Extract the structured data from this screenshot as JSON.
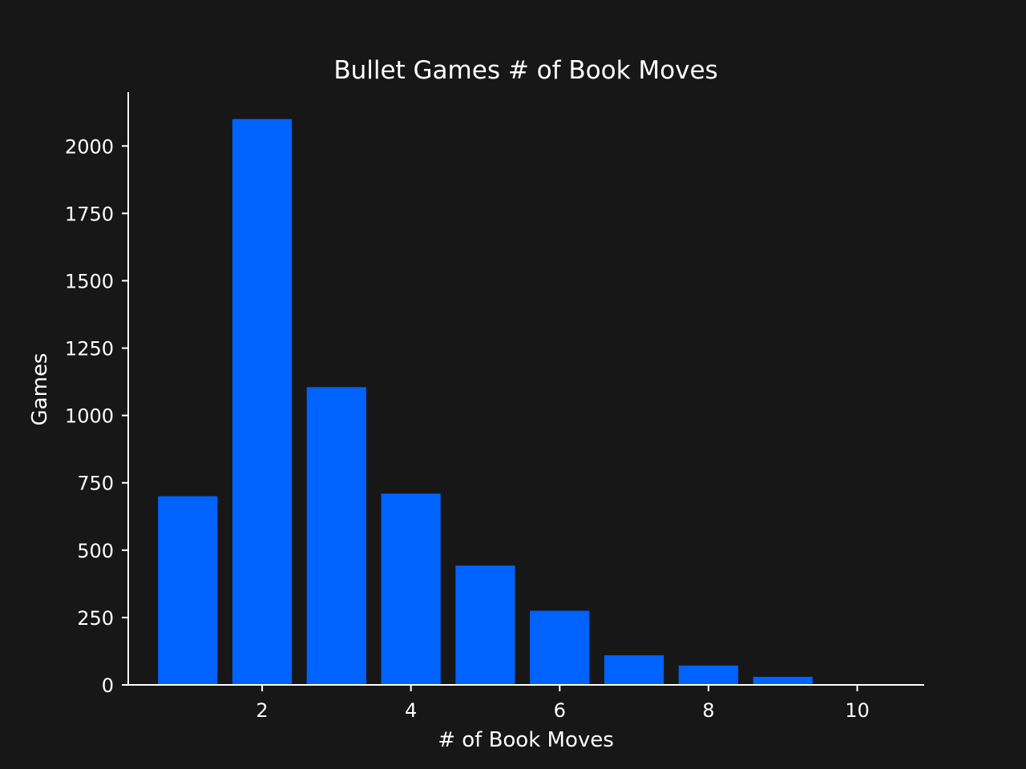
{
  "chart_data": {
    "type": "bar",
    "title": "Bullet Games # of Book Moves",
    "xlabel": "# of Book Moves",
    "ylabel": "Games",
    "x": [
      1,
      2,
      3,
      4,
      5,
      6,
      7,
      8,
      9,
      10
    ],
    "values": [
      700,
      2100,
      1105,
      710,
      443,
      275,
      110,
      72,
      30,
      0
    ],
    "xlim": [
      0.2,
      10.9
    ],
    "ylim": [
      0,
      2200
    ],
    "xticks": [
      2,
      4,
      6,
      8,
      10
    ],
    "yticks": [
      0,
      250,
      500,
      750,
      1000,
      1250,
      1500,
      1750,
      2000
    ],
    "bar_color": "#0062ff",
    "background": "#171717",
    "axis_color": "#ffffff",
    "grid": false,
    "legend": "none"
  }
}
